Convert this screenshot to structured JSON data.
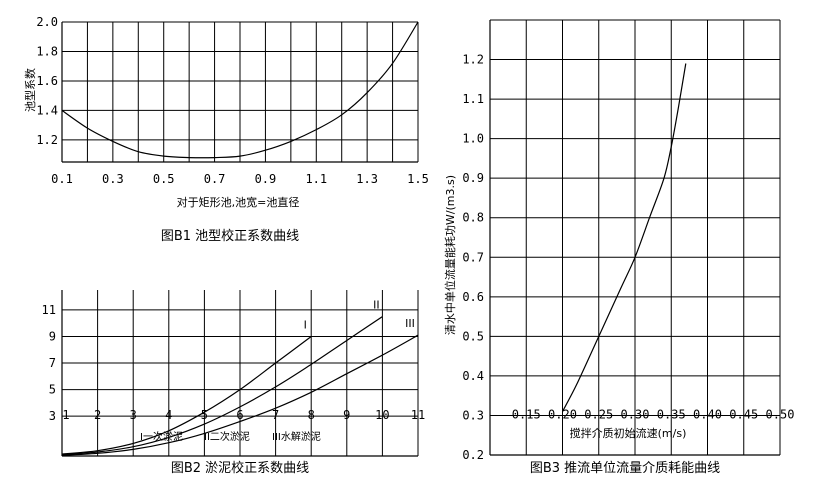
{
  "chart_data": [
    {
      "type": "line",
      "title": "图B1 池型校正系数曲线",
      "xlabel": "对于矩形池,池宽=池直径",
      "ylabel": "池型系数",
      "x_ticks": [
        "0.1",
        "0.3",
        "0.5",
        "0.7",
        "0.9",
        "1.1",
        "1.3",
        "1.5"
      ],
      "y_ticks": [
        "1.2",
        "1.4",
        "1.6",
        "1.8",
        "2.0"
      ],
      "xlim": [
        0.1,
        1.5
      ],
      "ylim": [
        1.05,
        2.0
      ],
      "grid": true,
      "series": [
        {
          "x": [
            0.1,
            0.2,
            0.3,
            0.4,
            0.5,
            0.6,
            0.7,
            0.8,
            0.9,
            1.0,
            1.1,
            1.2,
            1.3,
            1.4,
            1.5
          ],
          "y": [
            1.4,
            1.28,
            1.19,
            1.12,
            1.09,
            1.08,
            1.08,
            1.09,
            1.13,
            1.19,
            1.27,
            1.37,
            1.52,
            1.72,
            2.0
          ]
        }
      ]
    },
    {
      "type": "line",
      "title": "图B2 淤泥校正系数曲线",
      "x_ticks": [
        "1",
        "2",
        "3",
        "4",
        "5",
        "6",
        "7",
        "8",
        "9",
        "10",
        "11"
      ],
      "y_ticks": [
        "3",
        "5",
        "7",
        "9",
        "11"
      ],
      "xlim": [
        1,
        11
      ],
      "ylim": [
        0,
        12.5
      ],
      "grid": true,
      "legend_text": [
        "I一次淤泥",
        "II二次淤泥",
        "III水解淤泥"
      ],
      "series": [
        {
          "name": "I",
          "x": [
            1,
            2,
            3,
            4,
            5,
            6,
            7,
            8
          ],
          "y": [
            0.15,
            0.4,
            0.95,
            1.9,
            3.3,
            5.0,
            7.0,
            9.0
          ]
        },
        {
          "name": "II",
          "x": [
            1,
            2,
            3,
            4,
            5,
            6,
            7,
            8,
            9,
            10
          ],
          "y": [
            0.1,
            0.3,
            0.7,
            1.4,
            2.4,
            3.7,
            5.2,
            6.9,
            8.7,
            10.5
          ]
        },
        {
          "name": "III",
          "x": [
            1,
            2,
            3,
            4,
            5,
            6,
            7,
            8,
            9,
            10,
            11
          ],
          "y": [
            0.05,
            0.2,
            0.5,
            1.0,
            1.7,
            2.6,
            3.6,
            4.8,
            6.2,
            7.6,
            9.1
          ]
        }
      ]
    },
    {
      "type": "line",
      "title": "图B3 推流单位流量介质耗能曲线",
      "xlabel": "搅拌介质初始流速(m/s)",
      "ylabel": "清水中单位流量能耗功W/(m3.s)",
      "x_ticks": [
        "0.15",
        "0.20",
        "0.25",
        "0.30",
        "0.35",
        "0.40",
        "0.45",
        "0.50"
      ],
      "y_ticks": [
        "0.2",
        "0.3",
        "0.4",
        "0.5",
        "0.6",
        "0.7",
        "0.8",
        "0.9",
        "1.0",
        "1.1",
        "1.2"
      ],
      "xlim": [
        0.1,
        0.5
      ],
      "ylim": [
        0.2,
        1.3
      ],
      "grid": true,
      "series": [
        {
          "x": [
            0.2,
            0.22,
            0.25,
            0.28,
            0.3,
            0.32,
            0.34,
            0.35,
            0.36,
            0.37
          ],
          "y": [
            0.31,
            0.38,
            0.5,
            0.62,
            0.7,
            0.8,
            0.9,
            0.98,
            1.08,
            1.19
          ]
        }
      ]
    }
  ]
}
